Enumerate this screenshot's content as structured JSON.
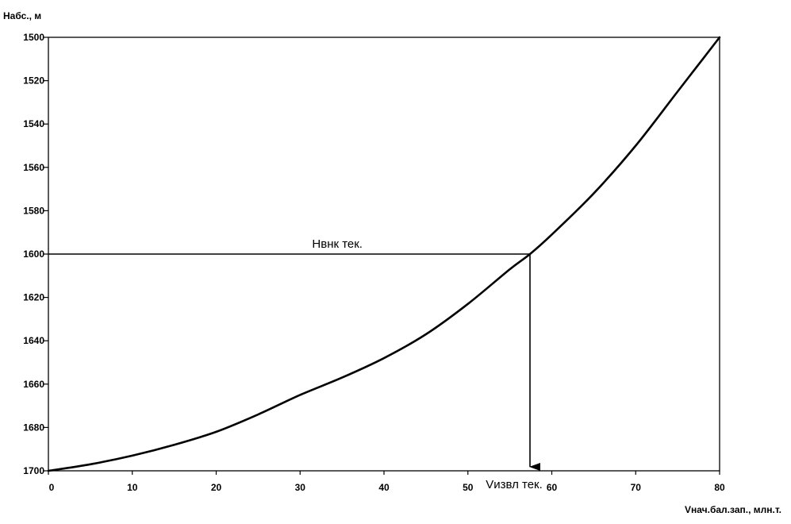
{
  "chart_data": {
    "type": "line",
    "ylabel": "Набс., м",
    "xlabel": "Vнач.бал.зап., млн.т.",
    "xlim": [
      0,
      80
    ],
    "ylim": [
      1700,
      1500
    ],
    "y_axis_inverted": true,
    "grid": false,
    "legend": "none",
    "x_ticks": [
      0,
      10,
      20,
      30,
      40,
      50,
      60,
      70,
      80
    ],
    "y_ticks": [
      1500,
      1520,
      1540,
      1560,
      1580,
      1600,
      1620,
      1640,
      1660,
      1680,
      1700
    ],
    "series": [
      {
        "x": [
          0,
          5,
          10,
          15,
          20,
          25,
          30,
          35,
          40,
          45,
          50,
          55,
          57.4,
          60,
          65,
          70,
          75,
          80
        ],
        "y": [
          1700,
          1697,
          1693,
          1688,
          1682,
          1674,
          1665,
          1657,
          1648,
          1637,
          1623,
          1607,
          1600,
          1591,
          1572,
          1550,
          1525,
          1500
        ]
      }
    ],
    "annotations": {
      "h_line": {
        "label": "Нвнк тек.",
        "y": 1600,
        "x_from": 0,
        "x_to": 57.4
      },
      "v_arrow": {
        "label": "Vизвл тек.",
        "x": 57.4,
        "y_from": 1600,
        "y_to": 1700
      }
    },
    "color": "#000000"
  }
}
